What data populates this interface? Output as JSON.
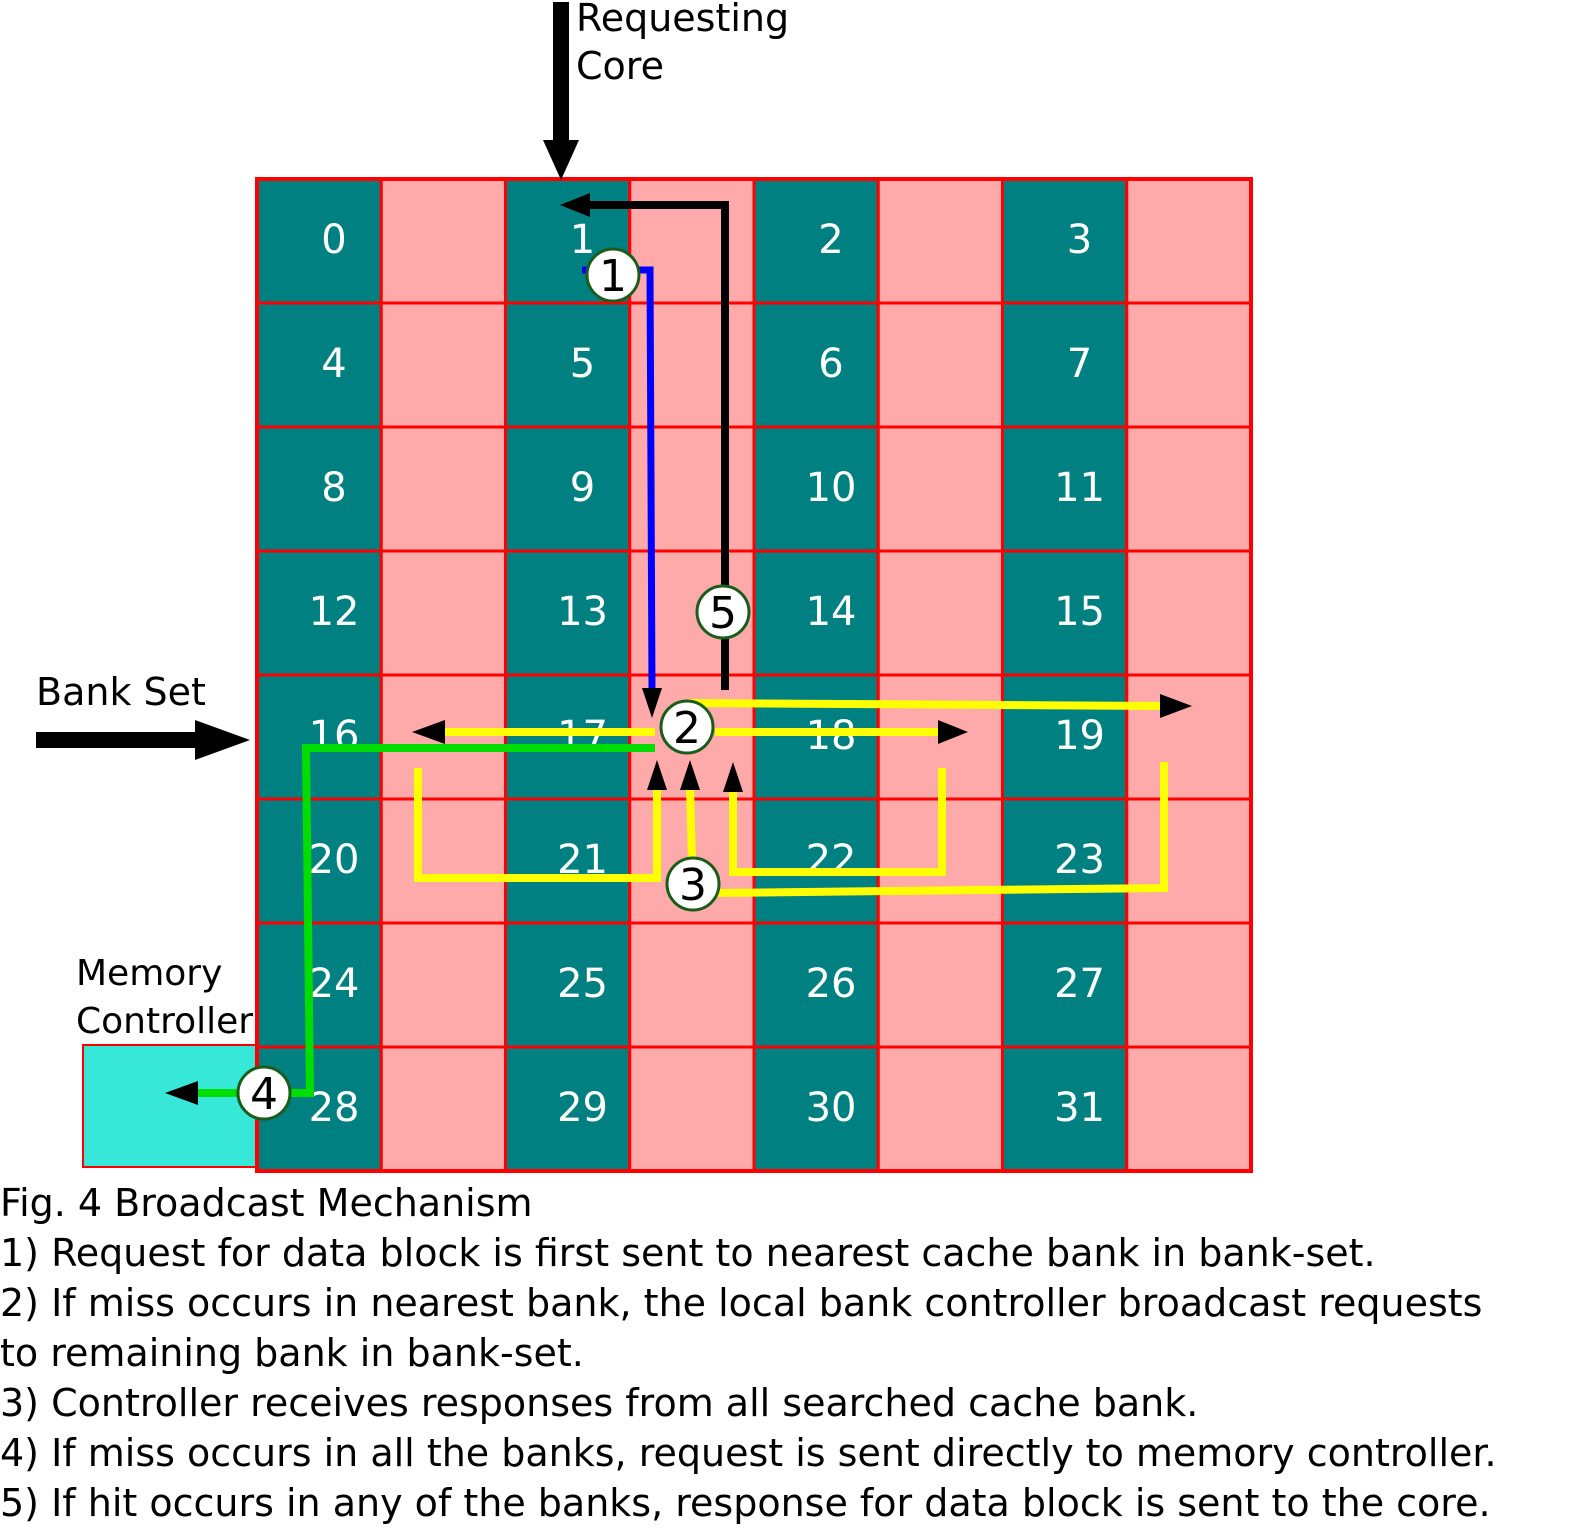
{
  "labels": {
    "requesting_core_line1": "Requesting",
    "requesting_core_line2": "Core",
    "bank_set": "Bank Set",
    "memory_controller_line1": "Memory",
    "memory_controller_line2": "Controller"
  },
  "banks": [
    "0",
    "1",
    "2",
    "3",
    "4",
    "5",
    "6",
    "7",
    "8",
    "9",
    "10",
    "11",
    "12",
    "13",
    "14",
    "15",
    "16",
    "17",
    "18",
    "19",
    "20",
    "21",
    "22",
    "23",
    "24",
    "25",
    "26",
    "27",
    "28",
    "29",
    "30",
    "31"
  ],
  "steps": [
    "1",
    "2",
    "3",
    "4",
    "5"
  ],
  "colors": {
    "bank": "#008080",
    "router": "#ffaaaa",
    "grid_border": "#ff0000",
    "memory_controller": "#37e8d8",
    "request_path": "#0000ff",
    "broadcast_path": "#ffff00",
    "memory_path": "#00dd00",
    "response_path": "#000000"
  },
  "caption": {
    "title": "Fig. 4 Broadcast Mechanism",
    "lines": [
      "1) Request for data block is first sent to nearest cache bank in bank-set.",
      "2) If miss occurs in nearest bank, the local bank controller broadcast requests",
      "to remaining bank in bank-set.",
      "3) Controller receives responses from all searched cache bank.",
      "4) If miss occurs in all the banks, request is sent directly to memory controller.",
      "5) If hit occurs in any of the banks, response for data block is sent to the core."
    ]
  }
}
